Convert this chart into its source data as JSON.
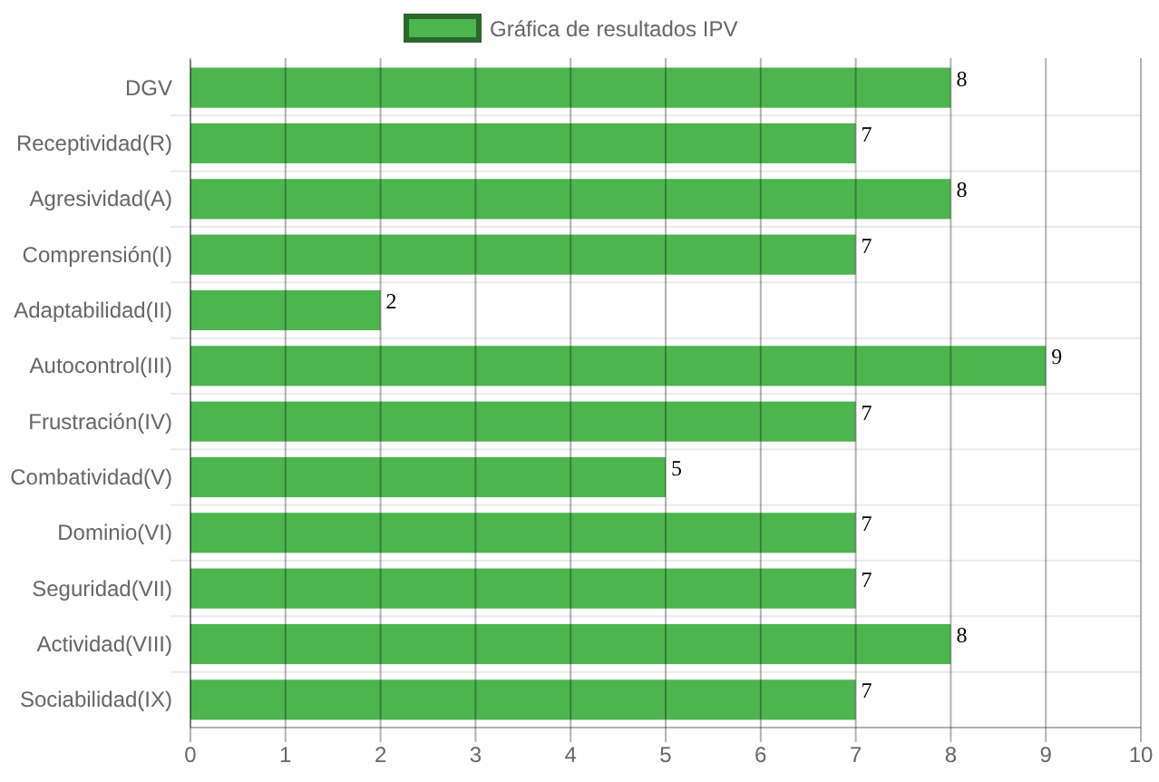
{
  "chart_data": {
    "type": "bar",
    "orientation": "horizontal",
    "categories": [
      "DGV",
      "Receptividad(R)",
      "Agresividad(A)",
      "Comprensión(I)",
      "Adaptabilidad(II)",
      "Autocontrol(III)",
      "Frustración(IV)",
      "Combatividad(V)",
      "Dominio(VI)",
      "Seguridad(VII)",
      "Actividad(VIII)",
      "Sociabilidad(IX)"
    ],
    "series": [
      {
        "name": "Gráfica de resultados IPV",
        "color": "#4cb54e",
        "values": [
          8,
          7,
          8,
          7,
          2,
          9,
          7,
          5,
          7,
          7,
          8,
          7
        ]
      }
    ],
    "xlim": [
      0,
      10
    ],
    "xticks": [
      0,
      1,
      2,
      3,
      4,
      5,
      6,
      7,
      8,
      9,
      10
    ],
    "grid": true,
    "legend": "top",
    "data_labels": true
  }
}
